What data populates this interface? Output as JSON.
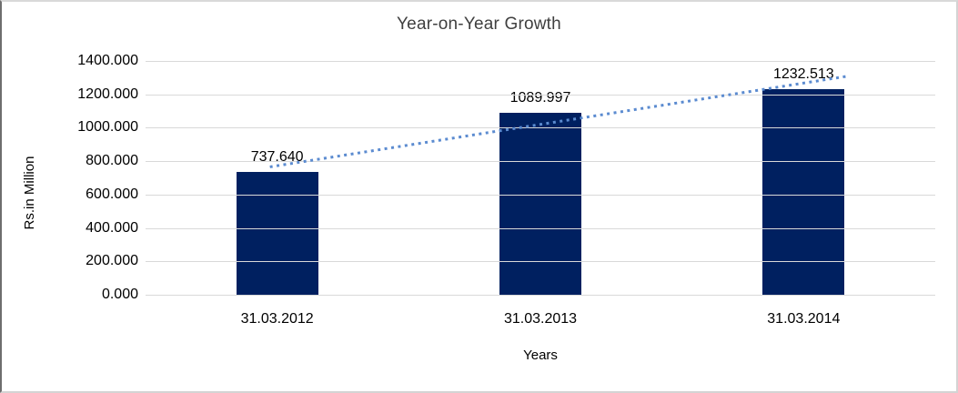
{
  "frame": {
    "background": "#ffffff",
    "border_color": "#d9d9d9"
  },
  "chart_data": {
    "type": "bar",
    "title": "Year-on-Year Growth",
    "xlabel": "Years",
    "ylabel": "Rs.in Million",
    "categories": [
      "31.03.2012",
      "31.03.2013",
      "31.03.2014"
    ],
    "values": [
      737.64,
      1089.997,
      1232.513
    ],
    "value_labels": [
      "737.640",
      "1089.997",
      "1232.513"
    ],
    "ylim": [
      0,
      1400
    ],
    "ytick_step": 200,
    "ytick_labels": [
      "0.000",
      "200.000",
      "400.000",
      "600.000",
      "800.000",
      "1000.000",
      "1200.000",
      "1400.000"
    ],
    "grid": true,
    "legend": "none",
    "bar_color": "#002060",
    "gridline_color": "#d9d9d9",
    "trendline": {
      "type": "linear",
      "style": "dotted",
      "color": "#5b8bd0"
    }
  }
}
